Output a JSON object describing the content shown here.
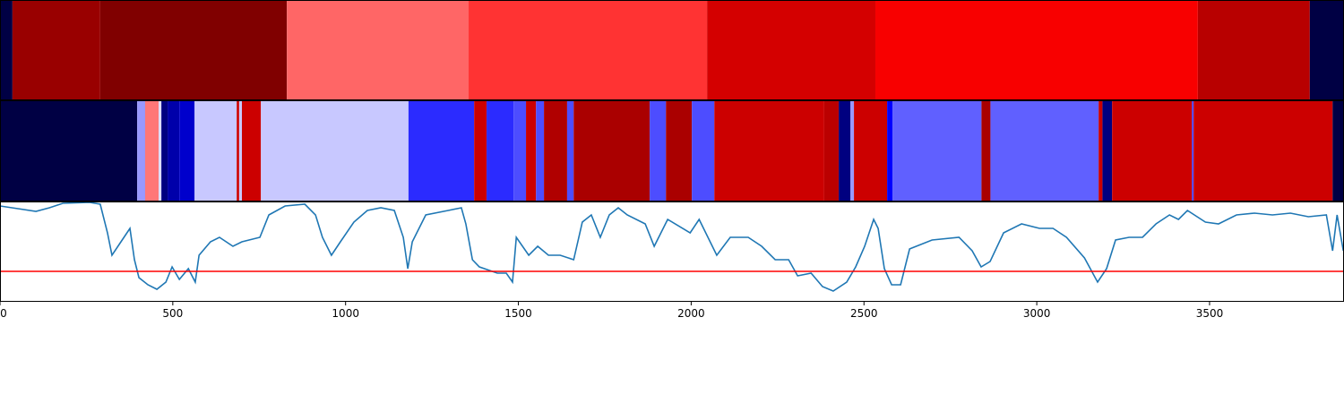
{
  "chart_data": {
    "type": "line",
    "xlim": [
      0,
      3889
    ],
    "xticks": [
      0,
      500,
      1000,
      1500,
      2000,
      2500,
      3000,
      3500
    ],
    "ylim": [
      0,
      112
    ],
    "bands": [
      {
        "edges": [
          0,
          36,
          290,
          830,
          1356,
          2046,
          2533,
          3466,
          3790,
          3889
        ],
        "colors": [
          "#000044",
          "#990000",
          "#800000",
          "#ff6666",
          "#ff3333",
          "#d40000",
          "#f80000",
          "#b80000",
          "#000044"
        ]
      },
      {
        "edges": [
          0,
          397,
          420,
          459,
          467,
          485,
          519,
          563,
          685,
          692,
          700,
          755,
          1182,
          1372,
          1408,
          1486,
          1522,
          1551,
          1574,
          1641,
          1660,
          1880,
          1927,
          2002,
          2067,
          2385,
          2427,
          2461,
          2471,
          2567,
          2583,
          2840,
          2866,
          3179,
          3190,
          3218,
          3449,
          3454,
          3856,
          3889
        ],
        "colors": [
          "#000044",
          "#9999ff",
          "#ff7777",
          "#ddddff",
          "#000080",
          "#0000aa",
          "#0000cc",
          "#c8c8ff",
          "#cc0000",
          "#c8c8ff",
          "#cc0000",
          "#c8c8ff",
          "#2b2bff",
          "#cc0000",
          "#2b2bff",
          "#4d4dff",
          "#cc0000",
          "#4d4dff",
          "#b00000",
          "#4d4dff",
          "#aa0000",
          "#4d4dff",
          "#aa0000",
          "#4d4dff",
          "#cc0000",
          "#bb0000",
          "#000080",
          "#9999ff",
          "#cc0000",
          "#0000ff",
          "#6060ff",
          "#aa0000",
          "#6060ff",
          "#cc0000",
          "#000080",
          "#cc0000",
          "#4444ff",
          "#cc0000",
          "#000044"
        ]
      }
    ],
    "series": [
      {
        "color": "#1f77b4",
        "x": [
          0,
          52,
          104,
          143,
          182,
          259,
          290,
          311,
          324,
          350,
          376,
          389,
          402,
          428,
          454,
          480,
          498,
          519,
          545,
          565,
          576,
          609,
          635,
          674,
          700,
          752,
          778,
          825,
          882,
          913,
          933,
          959,
          985,
          1024,
          1063,
          1102,
          1141,
          1167,
          1180,
          1193,
          1232,
          1297,
          1335,
          1348,
          1367,
          1387,
          1439,
          1465,
          1483,
          1494,
          1530,
          1556,
          1587,
          1621,
          1660,
          1685,
          1711,
          1737,
          1763,
          1789,
          1815,
          1867,
          1893,
          1932,
          1997,
          2023,
          2074,
          2113,
          2165,
          2204,
          2243,
          2282,
          2308,
          2347,
          2380,
          2411,
          2450,
          2476,
          2502,
          2528,
          2541,
          2559,
          2580,
          2606,
          2632,
          2697,
          2775,
          2813,
          2839,
          2865,
          2904,
          2956,
          3008,
          3047,
          3086,
          3138,
          3176,
          3202,
          3228,
          3267,
          3306,
          3345,
          3384,
          3410,
          3436,
          3488,
          3526,
          3578,
          3630,
          3682,
          3734,
          3786,
          3838,
          3856,
          3869,
          3887
        ],
        "values": [
          107,
          104,
          101,
          105,
          110,
          111,
          109,
          77,
          52,
          67,
          82,
          47,
          27,
          19,
          14,
          22,
          39,
          25,
          37,
          22,
          52,
          67,
          72,
          62,
          67,
          72,
          97,
          107,
          109,
          97,
          72,
          52,
          67,
          89,
          102,
          105,
          102,
          72,
          37,
          67,
          97,
          102,
          105,
          87,
          47,
          39,
          32,
          32,
          22,
          72,
          52,
          62,
          52,
          52,
          47,
          89,
          97,
          72,
          97,
          105,
          97,
          87,
          62,
          92,
          77,
          92,
          52,
          72,
          72,
          62,
          47,
          47,
          29,
          32,
          17,
          12,
          22,
          39,
          62,
          92,
          82,
          37,
          19,
          19,
          59,
          69,
          72,
          57,
          39,
          45,
          77,
          87,
          82,
          82,
          72,
          49,
          22,
          37,
          69,
          72,
          72,
          87,
          97,
          92,
          102,
          89,
          87,
          97,
          99,
          97,
          99,
          95,
          97,
          57,
          97,
          57
        ]
      }
    ],
    "hline": {
      "value": 34,
      "color": "#ff0000"
    }
  }
}
